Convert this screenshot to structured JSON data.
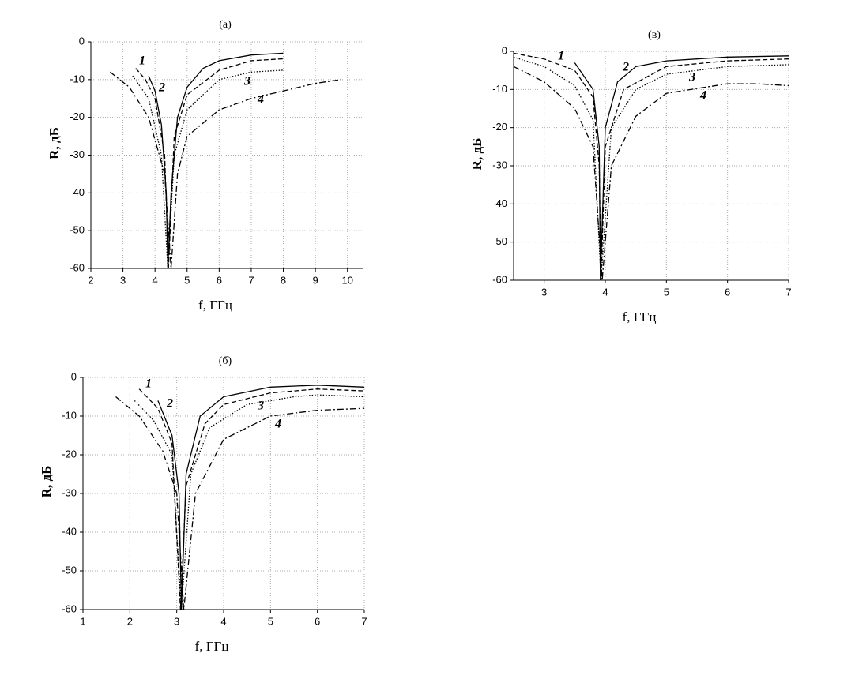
{
  "chart_data": [
    {
      "type": "line",
      "title": "(а)",
      "xlabel": "f,  ГГц",
      "ylabel": "R, дБ",
      "xlim": [
        2,
        10.5
      ],
      "ylim": [
        -60,
        0
      ],
      "xticks": [
        2,
        3,
        4,
        5,
        6,
        7,
        8,
        9,
        10
      ],
      "yticks": [
        -60,
        -50,
        -40,
        -30,
        -20,
        -10,
        0
      ],
      "grid": true,
      "series": [
        {
          "name": "1",
          "color": "#000",
          "dash": "solid",
          "x": [
            3.8,
            4.0,
            4.2,
            4.35,
            4.4,
            4.5,
            4.7,
            5,
            5.5,
            6,
            7,
            8
          ],
          "values": [
            -9,
            -13,
            -22,
            -40,
            -60,
            -40,
            -20,
            -12,
            -7,
            -5,
            -3.5,
            -3
          ]
        },
        {
          "name": "2",
          "color": "#000",
          "dash": "dashed",
          "x": [
            3.4,
            3.7,
            4.0,
            4.3,
            4.42,
            4.6,
            5,
            6,
            7,
            8
          ],
          "values": [
            -7,
            -10,
            -15,
            -30,
            -60,
            -25,
            -14,
            -7.5,
            -5,
            -4.5
          ]
        },
        {
          "name": "3",
          "color": "#000",
          "dash": "dotted",
          "x": [
            3.3,
            3.8,
            4.2,
            4.4,
            4.6,
            5,
            6,
            7,
            8
          ],
          "values": [
            -9,
            -15,
            -30,
            -60,
            -30,
            -18,
            -10,
            -8,
            -7.5
          ]
        },
        {
          "name": "4",
          "color": "#000",
          "dash": "dashdot",
          "x": [
            2.6,
            3.2,
            3.8,
            4.3,
            4.5,
            4.7,
            5,
            6,
            7,
            8,
            9,
            9.8
          ],
          "values": [
            -8,
            -12,
            -20,
            -35,
            -60,
            -35,
            -25,
            -18,
            -15,
            -13,
            -11,
            -10
          ]
        }
      ]
    },
    {
      "type": "line",
      "title": "(в)",
      "xlabel": "f,  ГГц",
      "ylabel": "R, дБ",
      "xlim": [
        2.5,
        7
      ],
      "ylim": [
        -60,
        0
      ],
      "xticks": [
        3,
        4,
        5,
        6,
        7
      ],
      "yticks": [
        -60,
        -50,
        -40,
        -30,
        -20,
        -10,
        0
      ],
      "grid": true,
      "series": [
        {
          "name": "1",
          "color": "#000",
          "dash": "solid",
          "x": [
            3.5,
            3.8,
            3.9,
            3.92,
            4.0,
            4.2,
            4.5,
            5,
            6,
            7
          ],
          "values": [
            -3,
            -10,
            -25,
            -60,
            -20,
            -8,
            -4,
            -2.5,
            -1.5,
            -1.2
          ]
        },
        {
          "name": "2",
          "color": "#000",
          "dash": "dashed",
          "x": [
            2.5,
            3,
            3.5,
            3.8,
            3.9,
            3.93,
            4.0,
            4.3,
            5,
            6,
            7
          ],
          "values": [
            -0.5,
            -2,
            -5,
            -12,
            -30,
            -60,
            -25,
            -10,
            -4,
            -2.5,
            -2
          ]
        },
        {
          "name": "3",
          "color": "#000",
          "dash": "dotted",
          "x": [
            2.5,
            3,
            3.5,
            3.8,
            3.93,
            4.1,
            4.5,
            5,
            6,
            7
          ],
          "values": [
            -1.5,
            -4,
            -9,
            -18,
            -60,
            -20,
            -10,
            -6,
            -4,
            -3.5
          ]
        },
        {
          "name": "4",
          "color": "#000",
          "dash": "dashdot",
          "x": [
            2.5,
            3,
            3.5,
            3.8,
            3.95,
            4.1,
            4.5,
            5,
            6,
            6.5,
            7
          ],
          "values": [
            -4,
            -8,
            -15,
            -25,
            -60,
            -30,
            -17,
            -11,
            -8.5,
            -8.5,
            -9
          ]
        }
      ]
    },
    {
      "type": "line",
      "title": "(б)",
      "xlabel": "f,  ГГц",
      "ylabel": "R, дБ",
      "xlim": [
        1,
        7
      ],
      "ylim": [
        -60,
        0
      ],
      "xticks": [
        1,
        2,
        3,
        4,
        5,
        6,
        7
      ],
      "yticks": [
        -60,
        -50,
        -40,
        -30,
        -20,
        -10,
        0
      ],
      "grid": true,
      "series": [
        {
          "name": "1",
          "color": "#000",
          "dash": "solid",
          "x": [
            2.6,
            2.9,
            3.05,
            3.1,
            3.2,
            3.5,
            4,
            5,
            6,
            7
          ],
          "values": [
            -6,
            -15,
            -30,
            -60,
            -25,
            -10,
            -5,
            -2.5,
            -2,
            -2.5
          ]
        },
        {
          "name": "2",
          "color": "#000",
          "dash": "dashed",
          "x": [
            2.2,
            2.6,
            2.9,
            3.08,
            3.2,
            3.6,
            4,
            5,
            6,
            7
          ],
          "values": [
            -3,
            -8,
            -17,
            -60,
            -28,
            -12,
            -7,
            -4,
            -3,
            -3.5
          ]
        },
        {
          "name": "3",
          "color": "#000",
          "dash": "dotted",
          "x": [
            2.1,
            2.5,
            2.9,
            3.1,
            3.3,
            3.7,
            4.5,
            5.5,
            6,
            7
          ],
          "values": [
            -6,
            -11,
            -20,
            -60,
            -25,
            -13,
            -7,
            -5,
            -4.5,
            -5
          ]
        },
        {
          "name": "4",
          "color": "#000",
          "dash": "dashdot",
          "x": [
            1.7,
            2.2,
            2.7,
            3.0,
            3.15,
            3.4,
            4,
            5,
            6,
            7
          ],
          "values": [
            -5,
            -10,
            -19,
            -30,
            -60,
            -30,
            -16,
            -10,
            -8.5,
            -8
          ]
        }
      ]
    }
  ]
}
